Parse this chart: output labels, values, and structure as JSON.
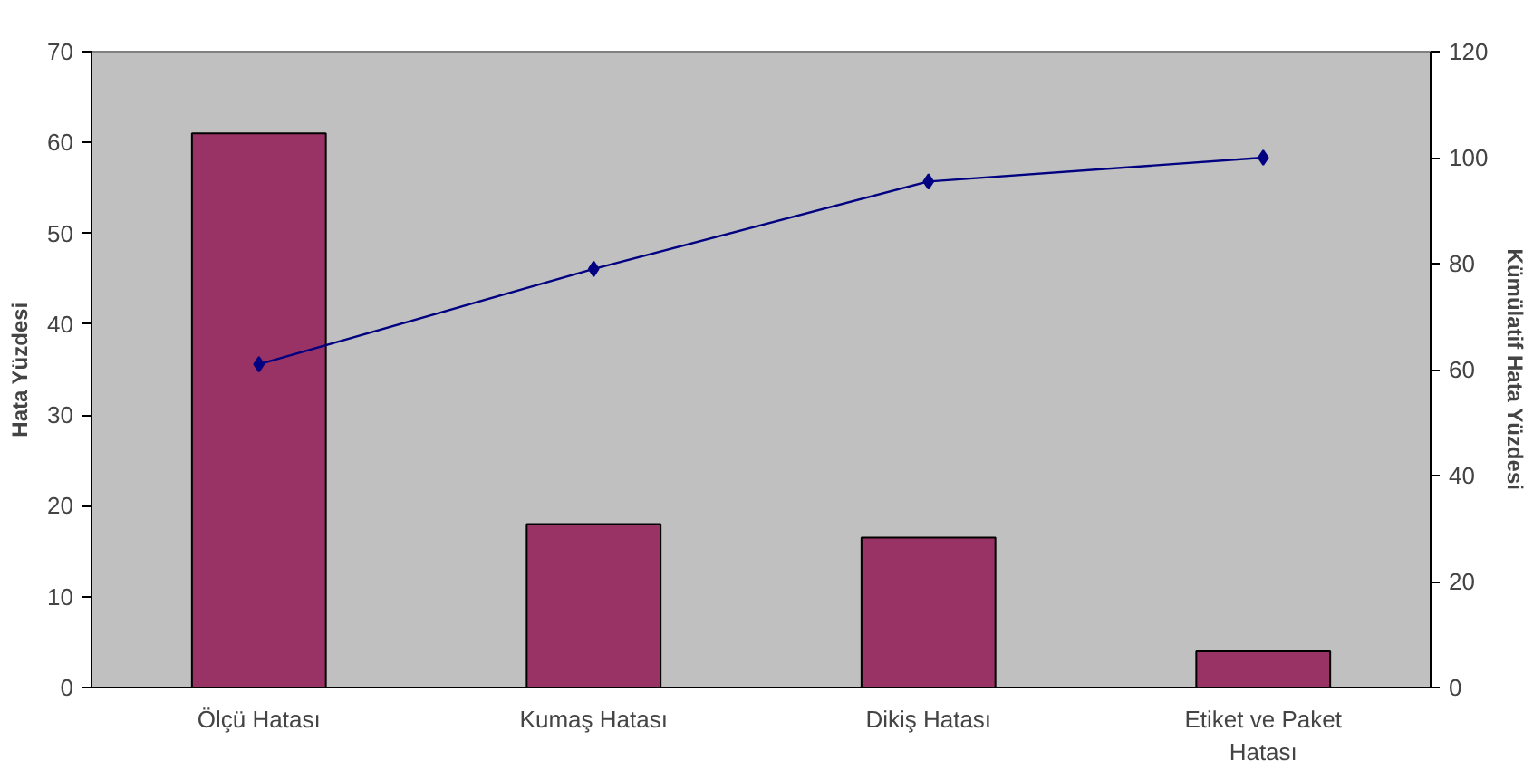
{
  "chart_data": {
    "type": "bar",
    "categories": [
      "Ölçü Hatası",
      "Kumaş Hatası",
      "Dikiş Hatası",
      "Etiket ve Paket Hatası"
    ],
    "series": [
      {
        "color": "#993366",
        "values": [
          61,
          18,
          16.5,
          4
        ]
      },
      {
        "type": "line",
        "axis": "y2",
        "color": "#000080",
        "marker": "diamond",
        "line_style": "solid",
        "values": [
          61,
          79,
          95.5,
          100
        ]
      }
    ],
    "ylabel": "Hata Yüzdesi",
    "y2label": "Kümülatif Hata Yüzdesi",
    "ylim": [
      0,
      70
    ],
    "yticks": [
      0,
      10,
      20,
      30,
      40,
      50,
      60,
      70
    ],
    "y2lim": [
      0,
      120
    ],
    "y2ticks": [
      0,
      20,
      40,
      60,
      80,
      100,
      120
    ],
    "grid": false
  }
}
